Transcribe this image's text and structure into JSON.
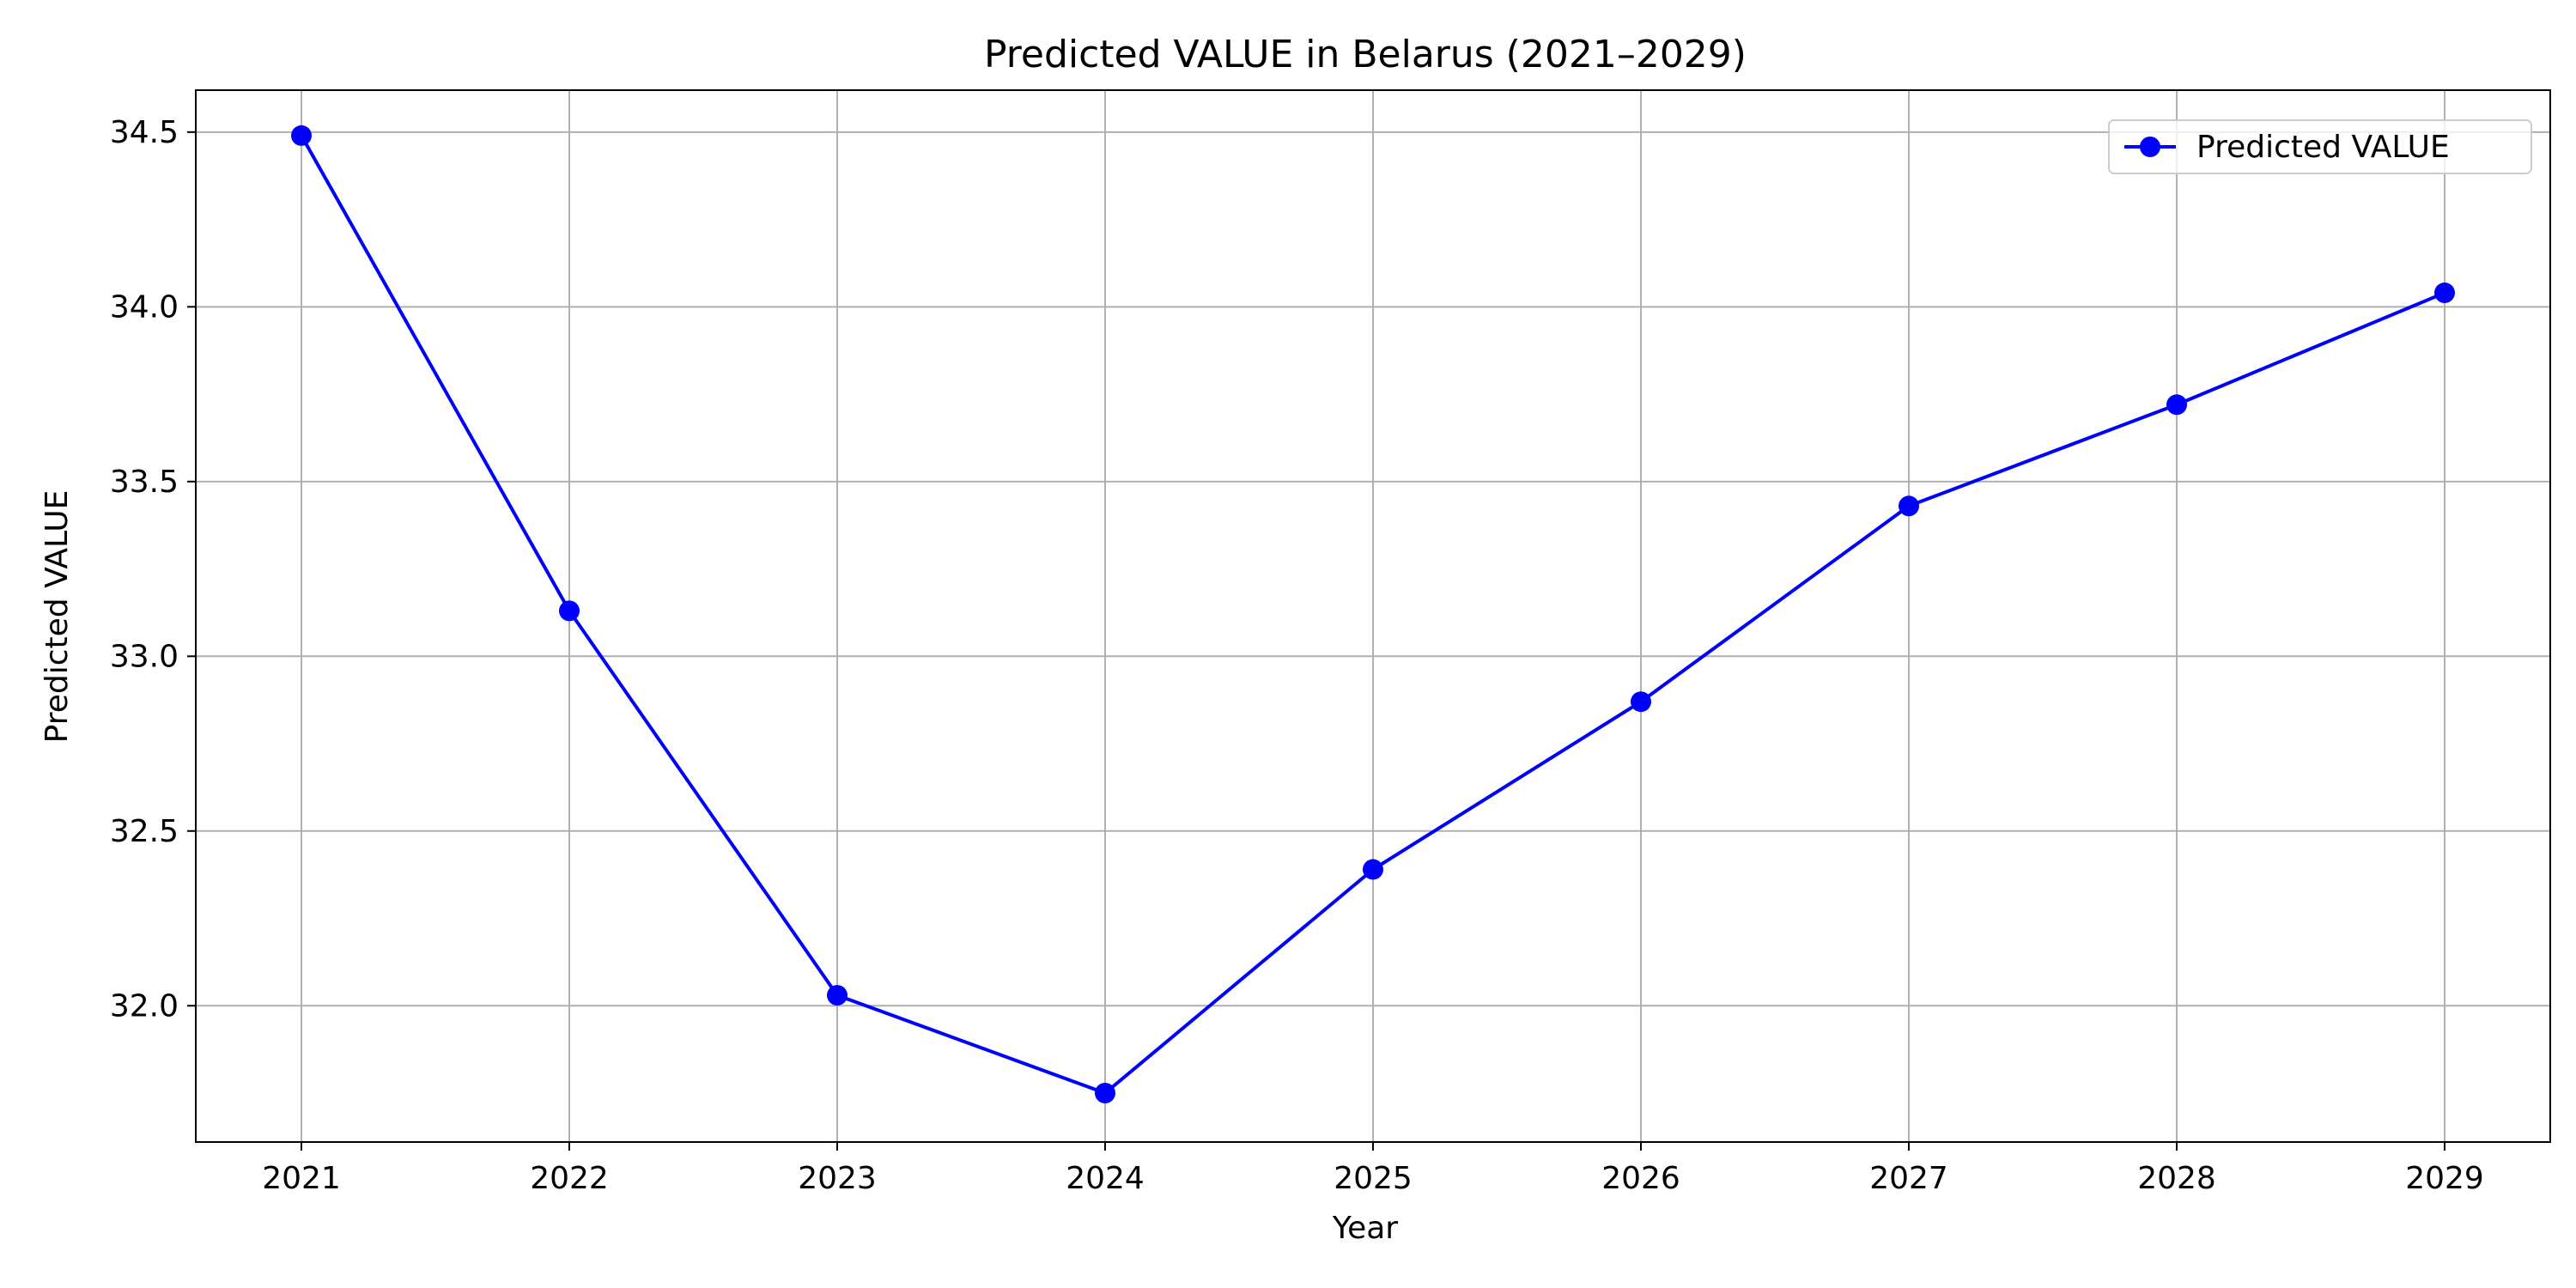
{
  "chart_data": {
    "type": "line",
    "title": "Predicted VALUE in Belarus (2021–2029)",
    "xlabel": "Year",
    "ylabel": "Predicted VALUE",
    "x": [
      "2021",
      "2022",
      "2023",
      "2024",
      "2025",
      "2026",
      "2027",
      "2028",
      "2029"
    ],
    "x_ticks": [
      "2021",
      "2022",
      "2023",
      "2024",
      "2025",
      "2026",
      "2027",
      "2028",
      "2029"
    ],
    "y_ticks": [
      "32.0",
      "32.5",
      "33.0",
      "33.5",
      "34.0",
      "34.5"
    ],
    "ylim": [
      31.61,
      34.62
    ],
    "series": [
      {
        "name": "Predicted VALUE",
        "color": "#0000ff",
        "marker": "circle",
        "values": [
          34.49,
          33.13,
          32.03,
          31.75,
          32.39,
          32.87,
          33.43,
          33.72,
          34.04
        ]
      }
    ],
    "grid": true,
    "legend_position": "top-right"
  }
}
